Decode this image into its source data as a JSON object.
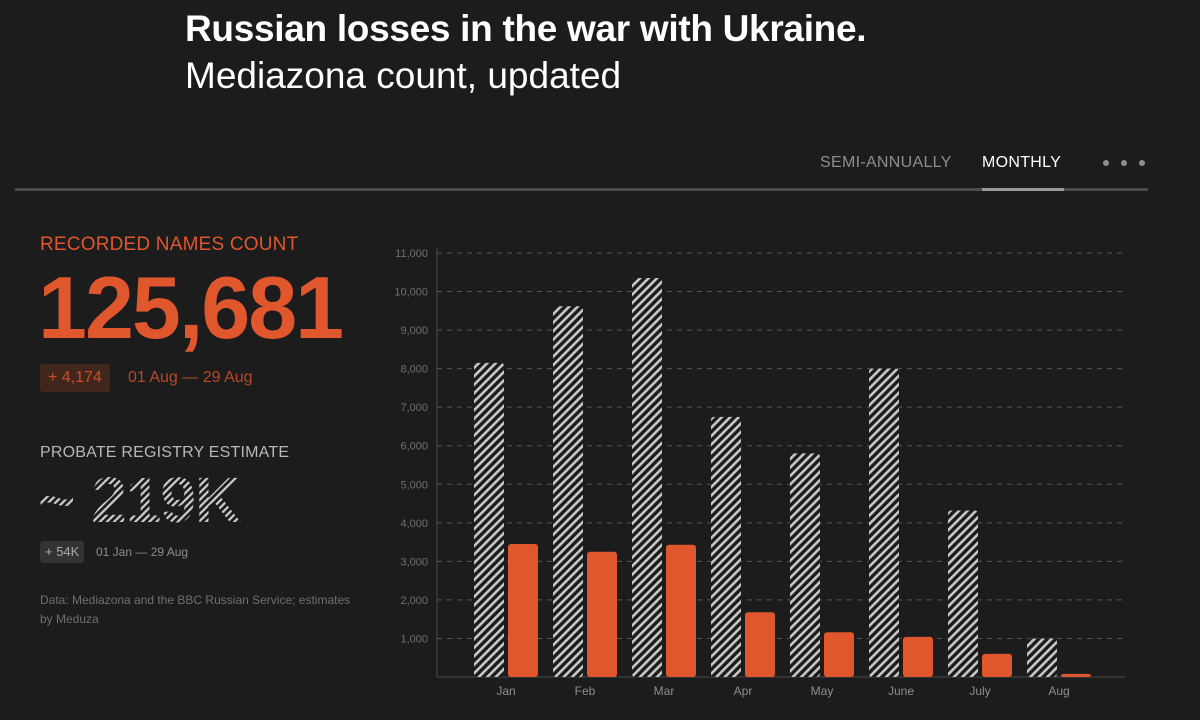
{
  "header": {
    "title": "Russian losses in the war with Ukraine.",
    "subtitle": "Mediazona count, updated"
  },
  "tabs": [
    {
      "label": "SEMI-ANNUALLY",
      "active": false
    },
    {
      "label": "MONTHLY",
      "active": true
    }
  ],
  "menu_icon": "more-dots-icon",
  "stats": {
    "recorded_label": "RECORDED NAMES COUNT",
    "recorded_value": "125,681",
    "recorded_delta": "+ 4,174",
    "recorded_range": "01 Aug — 29 Aug",
    "probate_label": "PROBATE REGISTRY ESTIMATE",
    "probate_value": "~ 219K",
    "probate_delta": "+ 54K",
    "probate_range": "01 Jan — 29 Aug"
  },
  "source": "Data: Mediazona and the BBC Russian Service; estimates by Meduza",
  "colors": {
    "accent": "#e0562d",
    "background": "#1c1c1c",
    "hatch": "#c8c8c8",
    "grid": "#555555"
  },
  "chart_data": {
    "type": "bar",
    "categories": [
      "Jan",
      "Feb",
      "Mar",
      "Apr",
      "May",
      "June",
      "July",
      "Aug"
    ],
    "series": [
      {
        "style": "hatched",
        "values": [
          8150,
          9620,
          10350,
          6750,
          5800,
          8000,
          4320,
          1000
        ]
      },
      {
        "style": "solid",
        "values": [
          3450,
          3250,
          3430,
          1680,
          1160,
          1040,
          600,
          80
        ]
      }
    ],
    "yticks": [
      1000,
      2000,
      3000,
      4000,
      5000,
      6000,
      7000,
      8000,
      9000,
      10000,
      11000
    ],
    "ytick_labels": [
      "1,000",
      "2,000",
      "3,000",
      "4,000",
      "5,000",
      "6,000",
      "7,000",
      "8,000",
      "9,000",
      "10,000",
      "11,000"
    ],
    "ylim": [
      0,
      11000
    ],
    "grid": true
  }
}
